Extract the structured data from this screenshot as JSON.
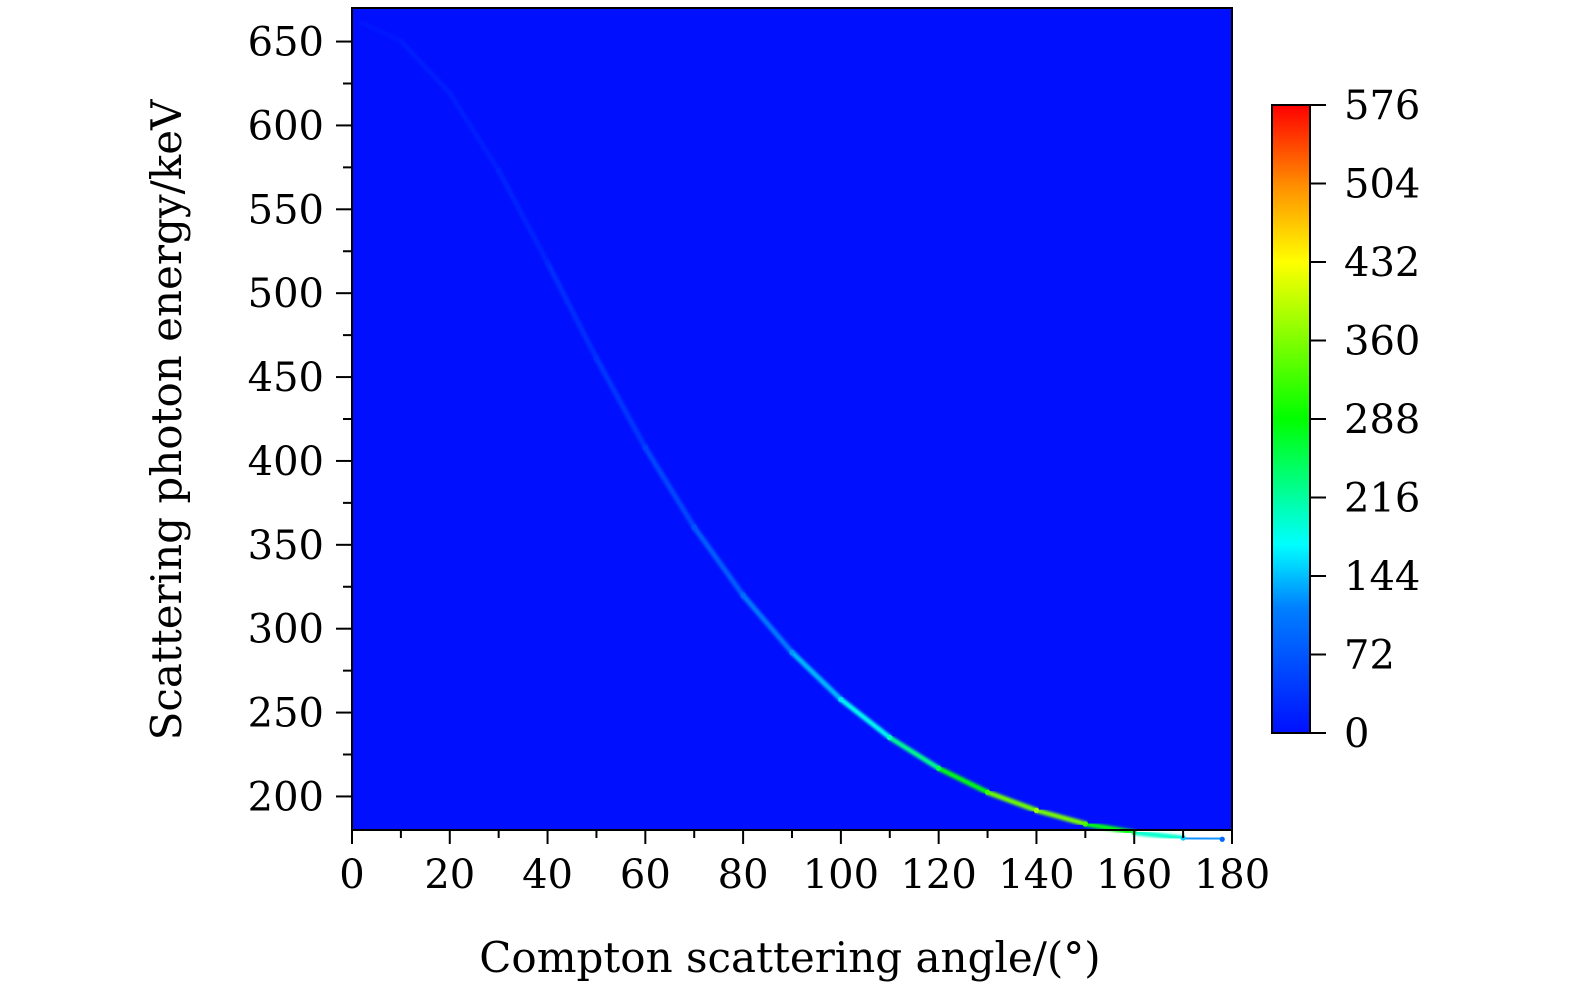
{
  "chart_data": {
    "type": "heatmap",
    "title": "",
    "xlabel": "Compton scattering angle/(°)",
    "ylabel": "Scattering photon energy/keV",
    "xlim": [
      0,
      180
    ],
    "ylim": [
      180,
      670
    ],
    "x_ticks": [
      "0",
      "20",
      "40",
      "60",
      "80",
      "100",
      "120",
      "140",
      "160",
      "180"
    ],
    "y_ticks": [
      "200",
      "250",
      "300",
      "350",
      "400",
      "450",
      "500",
      "550",
      "600",
      "650"
    ],
    "colorbar": {
      "min": 0,
      "max": 576,
      "ticks": [
        "0",
        "72",
        "144",
        "216",
        "288",
        "360",
        "432",
        "504",
        "576"
      ]
    },
    "background_color": "#0010FF",
    "colormap": [
      "#0010FF",
      "#00FFFF",
      "#00FF00",
      "#FFFF00",
      "#FF8000",
      "#FF0000"
    ],
    "series": [
      {
        "x": [
          2,
          10,
          20,
          30,
          40,
          50,
          60,
          70,
          80,
          90,
          100,
          110,
          120,
          130,
          140,
          150,
          160,
          170,
          178
        ],
        "y": [
          661.3,
          650.3,
          619.3,
          573.1,
          518.1,
          461.2,
          407.9,
          360.5,
          319.9,
          285.9,
          257.9,
          235.1,
          216.8,
          202.5,
          191.7,
          183.6,
          178.5,
          175.2,
          174.5
        ],
        "counts": [
          5,
          8,
          12,
          18,
          24,
          35,
          50,
          70,
          95,
          125,
          160,
          200,
          250,
          320,
          380,
          330,
          240,
          150,
          90
        ]
      }
    ]
  }
}
